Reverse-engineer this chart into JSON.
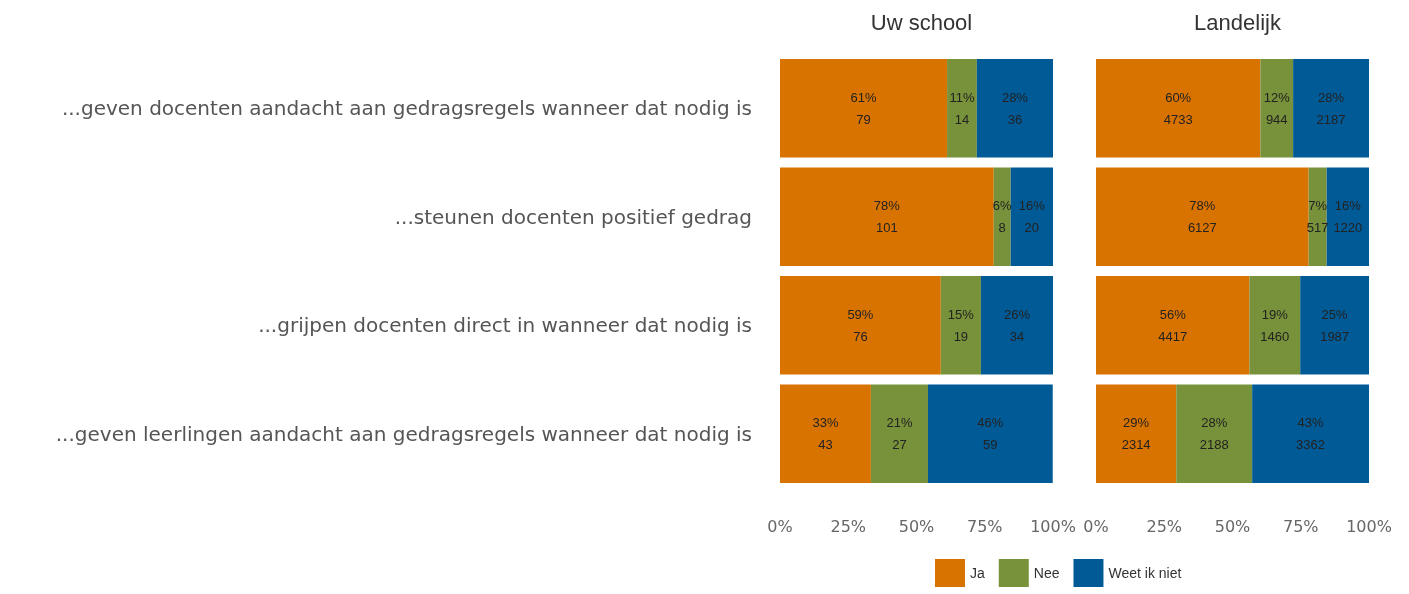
{
  "chart_data": [
    {
      "type": "bar",
      "orientation": "horizontal",
      "stacked": true,
      "title": "Uw school",
      "legend": "bottom",
      "grid": false,
      "categories": [
        "...geven docenten aandacht aan gedragsregels wanneer dat nodig is",
        "...steunen docenten positief gedrag",
        "...grijpen docenten direct in wanneer dat nodig is",
        "...geven leerlingen aandacht aan gedragsregels wanneer dat nodig is"
      ],
      "xlim": [
        0,
        100
      ],
      "xticks": [
        {
          "value": 0,
          "label": "0%"
        },
        {
          "value": 25,
          "label": "25%"
        },
        {
          "value": 50,
          "label": "50%"
        },
        {
          "value": 75,
          "label": "75%"
        },
        {
          "value": 100,
          "label": "100%"
        }
      ],
      "series": [
        {
          "name": "Ja",
          "color": "#d97300",
          "values": [
            61.2,
            78.3,
            58.9,
            33.3
          ],
          "value_labels": [
            "61%\n79",
            "78%\n101",
            "59%\n76",
            "33%\n43"
          ]
        },
        {
          "name": "Nee",
          "color": "#77923a",
          "values": [
            10.9,
            6.2,
            14.7,
            20.9
          ],
          "value_labels": [
            "11%\n14",
            "6%\n8",
            "15%\n19",
            "21%\n27"
          ]
        },
        {
          "name": "Weet ik niet",
          "color": "#005a96",
          "values": [
            27.9,
            15.5,
            26.4,
            45.7
          ],
          "value_labels": [
            "28%\n36",
            "16%\n20",
            "26%\n34",
            "46%\n59"
          ]
        }
      ]
    },
    {
      "type": "bar",
      "orientation": "horizontal",
      "stacked": true,
      "title": "Landelijk",
      "grid": false,
      "tick_labels": "x",
      "categories": [
        null,
        null,
        null,
        null
      ],
      "xlim": [
        0,
        100
      ],
      "xticks": [
        {
          "value": 0,
          "label": "0%"
        },
        {
          "value": 25,
          "label": "25%"
        },
        {
          "value": 50,
          "label": "50%"
        },
        {
          "value": 75,
          "label": "75%"
        },
        {
          "value": 100,
          "label": "100%"
        }
      ],
      "series": [
        {
          "color": "#d97300",
          "values": [
            60.2,
            77.9,
            56.2,
            29.4
          ],
          "value_labels": [
            "60%\n4733",
            "78%\n6127",
            "56%\n4417",
            "29%\n2314"
          ]
        },
        {
          "color": "#77923a",
          "values": [
            12.0,
            6.6,
            18.6,
            27.8
          ],
          "value_labels": [
            "12%\n944",
            "7%\n517",
            "19%\n1460",
            "28%\n2188"
          ]
        },
        {
          "color": "#005a96",
          "values": [
            27.8,
            15.5,
            25.2,
            42.8
          ],
          "value_labels": [
            "28%\n2187",
            "16%\n1220",
            "25%\n1987",
            "43%\n3362"
          ]
        }
      ]
    }
  ]
}
